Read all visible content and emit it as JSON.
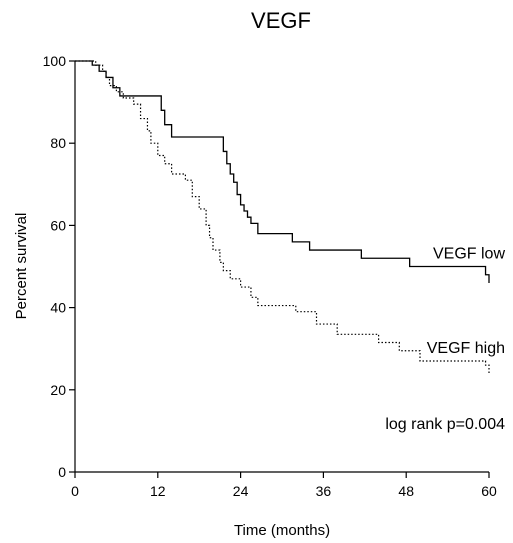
{
  "chart_data": {
    "type": "line",
    "title": "VEGF",
    "xlabel": "Time (months)",
    "ylabel": "Percent survival",
    "xlim": [
      0,
      60
    ],
    "ylim": [
      0,
      100
    ],
    "xticks": [
      0,
      12,
      24,
      36,
      48,
      60
    ],
    "yticks": [
      0,
      20,
      40,
      60,
      80,
      100
    ],
    "grid": false,
    "legend": "inline labels at right end of curves",
    "annotation": "log rank p=0.004",
    "series": [
      {
        "name": "VEGF low",
        "style": "solid",
        "x": [
          0,
          2.5,
          3.5,
          4.5,
          5.5,
          6.5,
          12.5,
          13,
          14,
          21.5,
          22,
          22.5,
          23,
          23.5,
          24,
          24.5,
          25,
          25.5,
          26.5,
          27.5,
          31.5,
          34,
          41.5,
          48.5,
          59.5,
          60
        ],
        "y": [
          100,
          99,
          97.5,
          96,
          93.5,
          91.5,
          88,
          84.5,
          81.5,
          78,
          75,
          72.5,
          70.5,
          67.5,
          65,
          63.5,
          62,
          60.5,
          58,
          58,
          56,
          54,
          52,
          50,
          48,
          46
        ]
      },
      {
        "name": "VEGF high",
        "style": "dotted",
        "x": [
          0,
          3,
          4,
          4.5,
          5,
          6,
          7,
          8.5,
          9.5,
          10.5,
          11,
          12,
          13,
          14,
          16,
          17,
          18,
          19,
          19.5,
          20,
          21,
          21.5,
          22.5,
          24,
          25.5,
          26.5,
          32,
          35,
          38,
          44,
          47,
          50,
          59.5,
          60
        ],
        "y": [
          100,
          99,
          97.5,
          96,
          94,
          92.5,
          91,
          89.5,
          86,
          83,
          80,
          77,
          75,
          72.5,
          71,
          67,
          64,
          60,
          57,
          54,
          51,
          49,
          47,
          45,
          42.5,
          40.5,
          39,
          36,
          33.5,
          31.5,
          29.5,
          27,
          26,
          24
        ]
      }
    ]
  }
}
